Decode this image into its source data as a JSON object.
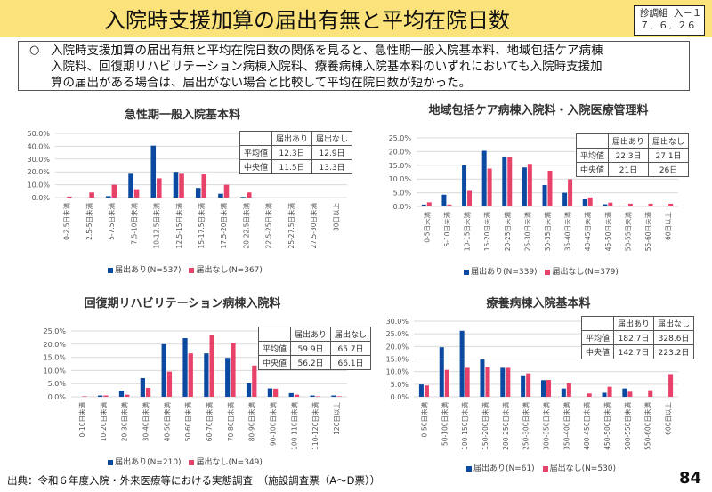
{
  "header": {
    "title": "入院時支援加算の届出有無と平均在院日数",
    "doc_id_line1": "診調組 入－１",
    "doc_id_line2": "７．６．２６"
  },
  "summary": {
    "bullet": "○",
    "lines": [
      "入院時支援加算の届出有無と平均在院日数の関係を見ると、急性期一般入院基本料、地域包括ケア病棟",
      "入院料、回復期リハビリテーション病棟入院料、療養病棟入院基本料のいずれにおいても入院時支援加",
      "算の届出がある場合は、届出がない場合と比較して平均在院日数が短かった。"
    ]
  },
  "colors": {
    "with_notification": "#0b4aa0",
    "without_notification": "#e8426a",
    "grid": "#d9d9d9"
  },
  "chart_data": [
    {
      "type": "bar",
      "title": "急性期一般入院基本料",
      "categories": [
        "0-2.5日未満",
        "2.5-5日未満",
        "5-7.5日未満",
        "7.5-10日未満",
        "10-12.5日未満",
        "12.5-15日未満",
        "15-17.5日未満",
        "17.5-20日未満",
        "20-22.5日未満",
        "22.5-25日未満",
        "25-27.5日未満",
        "27.5-30日未満",
        "30日以上"
      ],
      "series": [
        {
          "name": "届出あり(N=537)",
          "values": [
            0,
            0,
            1.1,
            18.5,
            40.5,
            20.0,
            7.5,
            3.0,
            0.5,
            0,
            0,
            0,
            0
          ]
        },
        {
          "name": "届出なし(N=367)",
          "values": [
            0.8,
            4.0,
            10.0,
            6.5,
            15.0,
            18.5,
            18.0,
            10.0,
            4.0,
            0,
            0,
            0,
            0
          ]
        }
      ],
      "ylim": [
        0,
        50
      ],
      "yticks": [
        "0.0%",
        "10.0%",
        "20.0%",
        "30.0%",
        "40.0%",
        "50.0%"
      ],
      "ytick_values": [
        0,
        10,
        20,
        30,
        40,
        50
      ],
      "grid": true,
      "legend": "bottom",
      "stats_table": {
        "headers": [
          "",
          "届出あり",
          "届出なし"
        ],
        "rows": [
          [
            "平均値",
            "12.3日",
            "12.9日"
          ],
          [
            "中央値",
            "11.5日",
            "13.3日"
          ]
        ]
      }
    },
    {
      "type": "bar",
      "title": "地域包括ケア病棟入院料・入院医療管理料",
      "categories": [
        "0-5日未満",
        "5-10日未満",
        "10-15日未満",
        "15-20日未満",
        "20-25日未満",
        "25-30日未満",
        "30-35日未満",
        "35-40日未満",
        "40-45日未満",
        "45-50日未満",
        "50-55日未満",
        "55-60日未満",
        "60日以上"
      ],
      "series": [
        {
          "name": "届出あり(N=339)",
          "values": [
            0.7,
            4.3,
            15.0,
            20.3,
            18.2,
            14.2,
            7.8,
            5.0,
            2.6,
            0.8,
            0.2,
            0,
            0.3
          ]
        },
        {
          "name": "届出なし(N=379)",
          "values": [
            1.5,
            0.7,
            5.7,
            13.8,
            18.0,
            15.5,
            13.0,
            9.9,
            3.3,
            1.4,
            1.0,
            1.0,
            1.0
          ]
        }
      ],
      "ylim": [
        0,
        25
      ],
      "yticks": [
        "0.0%",
        "5.0%",
        "10.0%",
        "15.0%",
        "20.0%",
        "25.0%"
      ],
      "ytick_values": [
        0,
        5,
        10,
        15,
        20,
        25
      ],
      "grid": true,
      "legend": "bottom",
      "stats_table": {
        "headers": [
          "",
          "届出あり",
          "届出なし"
        ],
        "rows": [
          [
            "平均値",
            "22.3日",
            "27.1日"
          ],
          [
            "中央値",
            "21日",
            "26日"
          ]
        ]
      }
    },
    {
      "type": "bar",
      "title": "回復期リハビリテーション病棟入院料",
      "categories": [
        "0-10日未満",
        "10-20日未満",
        "20-30日未満",
        "30-40日未満",
        "40-50日未満",
        "50-60日未満",
        "60-70日未満",
        "70-80日未満",
        "80-90日未満",
        "90-100日未満",
        "100-110日未満",
        "110-120日未満",
        "120日以上"
      ],
      "series": [
        {
          "name": "届出あり(N=210)",
          "values": [
            0,
            0.5,
            2.3,
            7.1,
            20.0,
            22.3,
            16.5,
            14.8,
            5.1,
            3.2,
            1.4,
            0.5,
            0.5
          ]
        },
        {
          "name": "届出なし(N=349)",
          "values": [
            0.2,
            0.5,
            0.8,
            3.4,
            9.6,
            16.5,
            23.6,
            20.5,
            11.9,
            3.1,
            0.8,
            0.2,
            0.2
          ]
        }
      ],
      "ylim": [
        0,
        25
      ],
      "yticks": [
        "0.0%",
        "5.0%",
        "10.0%",
        "15.0%",
        "20.0%",
        "25.0%"
      ],
      "ytick_values": [
        0,
        5,
        10,
        15,
        20,
        25
      ],
      "grid": true,
      "legend": "bottom",
      "stats_table": {
        "headers": [
          "",
          "届出あり",
          "届出なし"
        ],
        "rows": [
          [
            "平均値",
            "59.9日",
            "65.7日"
          ],
          [
            "中央値",
            "56.2日",
            "66.1日"
          ]
        ]
      }
    },
    {
      "type": "bar",
      "title": "療養病棟入院基本料",
      "categories": [
        "0-50日未満",
        "50-100日未満",
        "100-150日未満",
        "150-200日未満",
        "200-250日未満",
        "250-300日未満",
        "300-350日未満",
        "350-400日未満",
        "400-450日未満",
        "450-500日未満",
        "500-550日未満",
        "550-600日未満",
        "600日以上"
      ],
      "series": [
        {
          "name": "届出あり(N=61)",
          "values": [
            4.9,
            19.7,
            26.2,
            14.8,
            11.5,
            8.2,
            6.6,
            3.3,
            0,
            1.6,
            3.3,
            0,
            0
          ]
        },
        {
          "name": "届出なし(N=530)",
          "values": [
            4.5,
            10.7,
            11.5,
            11.8,
            11.5,
            9.3,
            6.7,
            5.5,
            1.3,
            4.0,
            2.0,
            2.6,
            9.0
          ]
        }
      ],
      "ylim": [
        0,
        30
      ],
      "yticks": [
        "0.0%",
        "5.0%",
        "10.0%",
        "15.0%",
        "20.0%",
        "25.0%",
        "30.0%"
      ],
      "ytick_values": [
        0,
        5,
        10,
        15,
        20,
        25,
        30
      ],
      "grid": true,
      "legend": "bottom",
      "stats_table": {
        "headers": [
          "",
          "届出あり",
          "届出なし"
        ],
        "rows": [
          [
            "平均値",
            "182.7日",
            "328.6日"
          ],
          [
            "中央値",
            "142.7日",
            "223.2日"
          ]
        ]
      }
    }
  ],
  "footer": {
    "source": "出典：令和６年度入院・外来医療等における実態調査　（施設調査票（A～D票））",
    "page_number": "84"
  }
}
